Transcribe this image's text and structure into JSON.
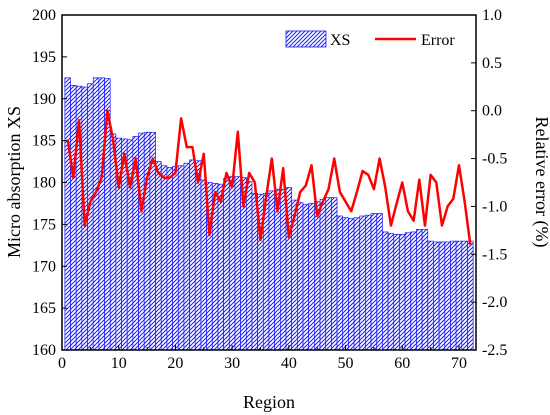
{
  "chart_data": {
    "type": "bar+line",
    "xlabel": "Region",
    "ylabel_left": "Micro absorption XS",
    "ylabel_right": "Relative error (%)",
    "xlim": [
      0,
      73
    ],
    "ylim_left": [
      160,
      200
    ],
    "ylim_right": [
      -2.5,
      1.0
    ],
    "x_ticks": [
      0,
      10,
      20,
      30,
      40,
      50,
      60,
      70
    ],
    "y_left_ticks": [
      160,
      165,
      170,
      175,
      180,
      185,
      190,
      195,
      200
    ],
    "y_right_ticks": [
      "-2.5",
      "-2.0",
      "-1.5",
      "-1.0",
      "-0.5",
      "0.0",
      "0.5",
      "1.0"
    ],
    "grid": false,
    "legend_position": "top-right",
    "colors": {
      "bars_stroke": "#1a1aff",
      "bars_fill": "#ffffff",
      "line": "#ff0000",
      "frame": "#000000"
    },
    "series": [
      {
        "name": "XS",
        "kind": "bar",
        "axis": "left",
        "x": [
          1,
          2,
          3,
          4,
          5,
          6,
          7,
          8,
          9,
          10,
          11,
          12,
          13,
          14,
          15,
          16,
          17,
          18,
          19,
          20,
          21,
          22,
          23,
          24,
          25,
          26,
          27,
          28,
          29,
          30,
          31,
          32,
          33,
          34,
          35,
          36,
          37,
          38,
          39,
          40,
          41,
          42,
          43,
          44,
          45,
          46,
          47,
          48,
          49,
          50,
          51,
          52,
          53,
          54,
          55,
          56,
          57,
          58,
          59,
          60,
          61,
          62,
          63,
          64,
          65,
          66,
          67,
          68,
          69,
          70,
          71,
          72
        ],
        "values": [
          192.5,
          191.6,
          191.5,
          191.4,
          191.8,
          192.5,
          192.5,
          192.4,
          185.8,
          185.3,
          185.2,
          185.1,
          185.5,
          185.9,
          186.0,
          186.0,
          182.5,
          182.0,
          181.8,
          181.9,
          182.0,
          182.3,
          182.7,
          182.6,
          180.3,
          180.0,
          179.9,
          179.8,
          180.5,
          180.7,
          180.7,
          180.6,
          180.1,
          178.7,
          178.6,
          178.7,
          179.0,
          179.2,
          179.2,
          179.4,
          177.9,
          177.6,
          177.4,
          177.5,
          177.7,
          178.0,
          178.2,
          178.2,
          176.0,
          175.8,
          175.7,
          175.8,
          176.0,
          176.1,
          176.3,
          176.3,
          174.1,
          173.9,
          173.8,
          173.8,
          174.0,
          174.1,
          174.4,
          174.4,
          173.0,
          172.9,
          172.9,
          172.9,
          173.0,
          173.0,
          173.0,
          173.0
        ]
      },
      {
        "name": "Error",
        "kind": "line",
        "axis": "right",
        "x": [
          1,
          2,
          3,
          4,
          5,
          6,
          7,
          8,
          9,
          10,
          11,
          12,
          13,
          14,
          15,
          16,
          17,
          18,
          19,
          20,
          21,
          22,
          23,
          24,
          25,
          26,
          27,
          28,
          29,
          30,
          31,
          32,
          33,
          34,
          35,
          36,
          37,
          38,
          39,
          40,
          41,
          42,
          43,
          44,
          45,
          46,
          47,
          48,
          49,
          50,
          51,
          52,
          53,
          54,
          55,
          56,
          57,
          58,
          59,
          60,
          61,
          62,
          63,
          64,
          65,
          66,
          67,
          68,
          69,
          70,
          71,
          72
        ],
        "values": [
          -0.3,
          -0.7,
          -0.1,
          -1.2,
          -0.95,
          -0.85,
          -0.7,
          0.0,
          -0.3,
          -0.8,
          -0.45,
          -0.8,
          -0.5,
          -1.05,
          -0.7,
          -0.5,
          -0.65,
          -0.7,
          -0.7,
          -0.65,
          -0.08,
          -0.38,
          -0.38,
          -0.75,
          -0.45,
          -1.3,
          -0.85,
          -0.95,
          -0.65,
          -0.8,
          -0.22,
          -1.0,
          -0.65,
          -0.75,
          -1.35,
          -0.9,
          -0.5,
          -1.05,
          -0.6,
          -1.32,
          -1.1,
          -0.85,
          -0.78,
          -0.57,
          -1.1,
          -0.95,
          -0.82,
          -0.5,
          -0.85,
          -0.95,
          -1.05,
          -0.85,
          -0.63,
          -0.67,
          -0.82,
          -0.5,
          -0.8,
          -1.2,
          -0.97,
          -0.75,
          -1.05,
          -1.15,
          -0.72,
          -1.2,
          -0.67,
          -0.75,
          -1.2,
          -1.0,
          -0.92,
          -0.57,
          -0.95,
          -1.4
        ]
      }
    ]
  }
}
